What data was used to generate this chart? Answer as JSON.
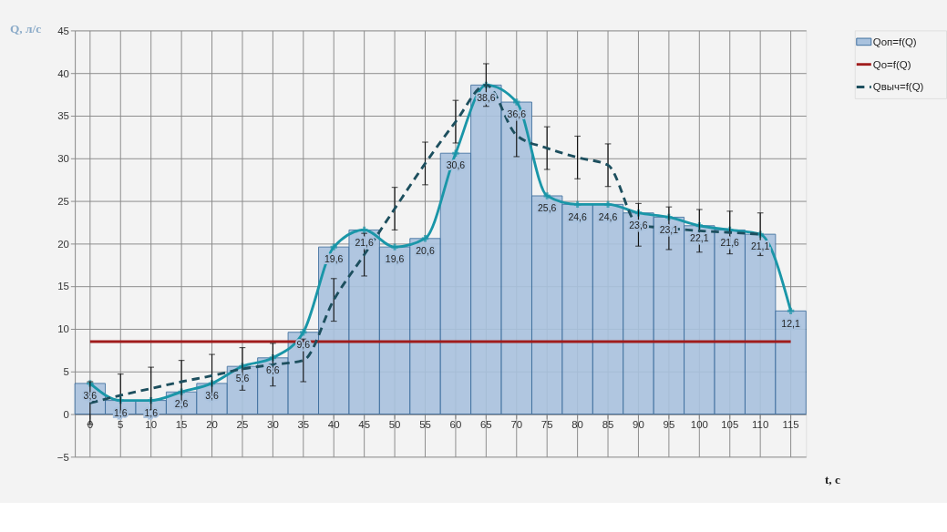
{
  "chart_data": {
    "type": "bar",
    "xlabel": "t, c",
    "ylabel": "Q, л/с",
    "ylim": [
      -5,
      45
    ],
    "yticks": [
      -5,
      0,
      5,
      10,
      15,
      20,
      25,
      30,
      35,
      40,
      45
    ],
    "grid": true,
    "legend": "right",
    "categories": [
      "0",
      "5",
      "10",
      "15",
      "20",
      "25",
      "30",
      "35",
      "40",
      "45",
      "50",
      "55",
      "60",
      "65",
      "70",
      "75",
      "80",
      "85",
      "90",
      "95",
      "100",
      "105",
      "110",
      "115"
    ],
    "series": [
      {
        "name": "Qоп=f(Q)",
        "color": "#a9c2de",
        "values": [
          3.6,
          1.6,
          1.6,
          2.6,
          3.6,
          5.6,
          6.6,
          9.6,
          19.6,
          21.6,
          19.6,
          20.6,
          30.6,
          38.6,
          36.6,
          25.6,
          24.6,
          24.6,
          23.6,
          23.1,
          22.1,
          21.6,
          21.1,
          12.1
        ],
        "value_labels": [
          "3,6",
          "1,6",
          "1,6",
          "2,6",
          "3,6",
          "5,6",
          "6,6",
          "9,6",
          "19,6",
          "21,6",
          "19,6",
          "20,6",
          "30,6",
          "38,6",
          "36,6",
          "25,6",
          "24,6",
          "24,6",
          "23,6",
          "23,1",
          "22,1",
          "21,6",
          "21,1",
          "12,1"
        ]
      },
      {
        "type": "line",
        "color": "#1a96a8",
        "marker": "cross",
        "values": [
          3.6,
          1.6,
          1.6,
          2.6,
          3.6,
          5.6,
          6.6,
          9.6,
          19.6,
          21.6,
          19.6,
          20.6,
          30.6,
          38.6,
          36.6,
          25.6,
          24.6,
          24.6,
          23.6,
          23.1,
          22.1,
          21.6,
          21.1,
          12.1
        ]
      },
      {
        "name": "Qо=f(Q)",
        "type": "line",
        "color": "#a01c1c",
        "marker": "none",
        "values": [
          8.5,
          8.5,
          8.5,
          8.5,
          8.5,
          8.5,
          8.5,
          8.5,
          8.5,
          8.5,
          8.5,
          8.5,
          8.5,
          8.5,
          8.5,
          8.5,
          8.5,
          8.5,
          8.5,
          8.5,
          8.5,
          8.5,
          8.5,
          8.5
        ]
      },
      {
        "name": "Qвыч=f(Q)",
        "type": "line",
        "color": "#1d4f5e",
        "marker": "none",
        "line_style": "dashed",
        "values": [
          1.3,
          2.2,
          3.0,
          3.8,
          4.5,
          5.3,
          5.8,
          6.3,
          13.4,
          18.7,
          24.1,
          29.4,
          34.3,
          38.6,
          32.7,
          31.2,
          30.1,
          29.2,
          22.2,
          21.8,
          21.5,
          21.3,
          21.1,
          null
        ],
        "errors": [
          2.5,
          2.5,
          2.5,
          2.5,
          2.5,
          2.5,
          2.5,
          2.5,
          2.5,
          2.5,
          2.5,
          2.5,
          2.5,
          2.5,
          2.5,
          2.5,
          2.5,
          2.5,
          2.5,
          2.5,
          2.5,
          2.5,
          2.5,
          null
        ]
      }
    ]
  }
}
